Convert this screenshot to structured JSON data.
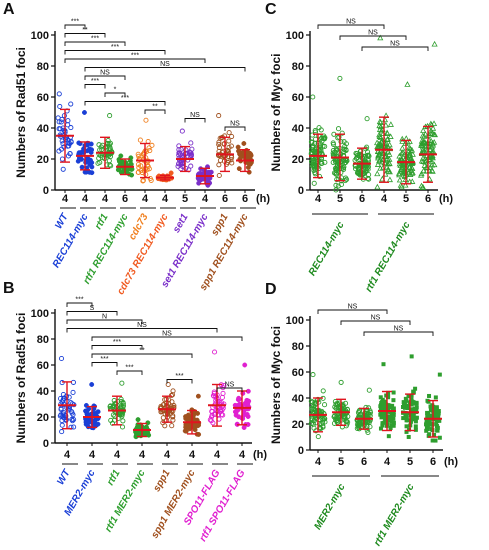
{
  "chart_data": [
    {
      "panel": "A",
      "type": "scatter",
      "ylabel": "Numbers of Rad51 foci",
      "ylim": [
        0,
        100
      ],
      "yticks": [
        0,
        20,
        40,
        60,
        80,
        100
      ],
      "x_unit": "(h)",
      "categories": [
        "4",
        "4",
        "4",
        "6",
        "4",
        "4",
        "5",
        "4",
        "6",
        "6"
      ],
      "group_labels": [
        "WT",
        "REC114-myc",
        "rtf1",
        "rtf1 REC114-myc",
        "cdc73",
        "cdc73 REC114-myc",
        "set1",
        "set1 REC114-myc",
        "spp1",
        "spp1 REC114-myc"
      ],
      "series": [
        {
          "label": "WT",
          "color": "#1a3fd6",
          "marker": "open-circle",
          "mean": 35,
          "sd": 17,
          "max": 62
        },
        {
          "label": "REC114-myc",
          "color": "#1a3fd6",
          "marker": "filled-circle",
          "mean": 22,
          "sd": 9,
          "max": 50
        },
        {
          "label": "rtf1",
          "color": "#2e9e2e",
          "marker": "open-circle",
          "mean": 24,
          "sd": 10,
          "max": 48
        },
        {
          "label": "rtf1 REC114-myc",
          "color": "#2e9e2e",
          "marker": "filled-circle",
          "mean": 15,
          "sd": 5,
          "max": 22
        },
        {
          "label": "cdc73",
          "color": "#f08020",
          "marker": "open-circle",
          "mean": 19,
          "sd": 11,
          "max": 45
        },
        {
          "label": "cdc73 REC114-myc",
          "color": "#f05a20",
          "marker": "filled-circle",
          "mean": 8,
          "sd": 1.5,
          "max": 11
        },
        {
          "label": "set1",
          "color": "#7a2fc9",
          "marker": "open-circle",
          "mean": 20,
          "sd": 8,
          "max": 38
        },
        {
          "label": "set1 REC114-myc",
          "color": "#7a2fc9",
          "marker": "filled-circle",
          "mean": 9,
          "sd": 5,
          "max": 15
        },
        {
          "label": "spp1",
          "color": "#a0501e",
          "marker": "open-circle",
          "mean": 23,
          "sd": 11,
          "max": 48
        },
        {
          "label": "spp1 REC114-myc",
          "color": "#a0501e",
          "marker": "filled-circle",
          "mean": 19,
          "sd": 7,
          "max": 30
        }
      ],
      "comparisons": [
        {
          "from": 1,
          "to": 2,
          "text": "***"
        },
        {
          "from": 1,
          "to": 3,
          "text": "**"
        },
        {
          "from": 1,
          "to": 4,
          "text": "***"
        },
        {
          "from": 1,
          "to": 6,
          "text": "***"
        },
        {
          "from": 1,
          "to": 8,
          "text": "***"
        },
        {
          "from": 2,
          "to": 10,
          "text": "NS"
        },
        {
          "from": 2,
          "to": 4,
          "text": "NS"
        },
        {
          "from": 2,
          "to": 3,
          "text": "***"
        },
        {
          "from": 3,
          "to": 4,
          "text": "*"
        },
        {
          "from": 2,
          "to": 6,
          "text": "***"
        },
        {
          "from": 5,
          "to": 6,
          "text": "**"
        },
        {
          "from": 7,
          "to": 8,
          "text": "NS"
        },
        {
          "from": 9,
          "to": 10,
          "text": "NS"
        }
      ]
    },
    {
      "panel": "B",
      "type": "scatter",
      "ylabel": "Numbers of Rad51 foci",
      "ylim": [
        0,
        100
      ],
      "yticks": [
        0,
        20,
        40,
        60,
        80,
        100
      ],
      "x_unit": "(h)",
      "categories": [
        "4",
        "4",
        "4",
        "4",
        "4",
        "4",
        "4",
        "4"
      ],
      "group_labels": [
        "WT",
        "MER2-myc",
        "rtf1",
        "rtf1 MER2-myc",
        "spp1",
        "spp1 MER2-myc",
        "SPO11-FLAG",
        "rtf1 SPO11-FLAG"
      ],
      "series": [
        {
          "label": "WT",
          "color": "#1a3fd6",
          "marker": "open-circle",
          "mean": 29,
          "sd": 18,
          "max": 65
        },
        {
          "label": "MER2-myc",
          "color": "#1a3fd6",
          "marker": "filled-circle",
          "mean": 20,
          "sd": 8,
          "max": 45
        },
        {
          "label": "rtf1",
          "color": "#2e9e2e",
          "marker": "open-circle",
          "mean": 25,
          "sd": 11,
          "max": 46
        },
        {
          "label": "rtf1 MER2-myc",
          "color": "#2e9e2e",
          "marker": "filled-circle",
          "mean": 10,
          "sd": 5,
          "max": 18
        },
        {
          "label": "spp1",
          "color": "#a0501e",
          "marker": "open-circle",
          "mean": 26,
          "sd": 10,
          "max": 45
        },
        {
          "label": "spp1 MER2-myc",
          "color": "#a0501e",
          "marker": "filled-circle",
          "mean": 16,
          "sd": 9,
          "max": 36
        },
        {
          "label": "SPO11-FLAG",
          "color": "#e020d0",
          "marker": "open-circle",
          "mean": 29,
          "sd": 16,
          "max": 70
        },
        {
          "label": "rtf1 SPO11-FLAG",
          "color": "#e020d0",
          "marker": "filled-circle",
          "mean": 27,
          "sd": 13,
          "max": 60
        }
      ],
      "comparisons": [
        {
          "from": 1,
          "to": 2,
          "text": "***"
        },
        {
          "from": 1,
          "to": 3,
          "text": "S"
        },
        {
          "from": 1,
          "to": 4,
          "text": "N"
        },
        {
          "from": 1,
          "to": 7,
          "text": "NS"
        },
        {
          "from": 2,
          "to": 8,
          "text": "NS"
        },
        {
          "from": 2,
          "to": 4,
          "text": "***"
        },
        {
          "from": 2,
          "to": 6,
          "text": "**"
        },
        {
          "from": 2,
          "to": 3,
          "text": "***"
        },
        {
          "from": 3,
          "to": 4,
          "text": "***"
        },
        {
          "from": 5,
          "to": 6,
          "text": "***"
        },
        {
          "from": 7,
          "to": 8,
          "text": "NS"
        }
      ]
    },
    {
      "panel": "C",
      "type": "scatter",
      "ylabel": "Numbers of Myc foci",
      "ylim": [
        0,
        100
      ],
      "yticks": [
        0,
        20,
        40,
        60,
        80,
        100
      ],
      "x_unit": "(h)",
      "categories": [
        "4",
        "5",
        "6",
        "4",
        "5",
        "6"
      ],
      "group_labels": [
        "REC114-myc",
        "rtf1 REC114-myc"
      ],
      "series": [
        {
          "label": "REC114-myc 4h",
          "color": "#2e9e2e",
          "marker": "open-circle",
          "mean": 22,
          "sd": 14,
          "max": 60
        },
        {
          "label": "REC114-myc 5h",
          "color": "#2e9e2e",
          "marker": "open-circle",
          "mean": 21,
          "sd": 15,
          "max": 72
        },
        {
          "label": "REC114-myc 6h",
          "color": "#2e9e2e",
          "marker": "open-circle",
          "mean": 17,
          "sd": 10,
          "max": 46
        },
        {
          "label": "rtf1 REC114-myc 4h",
          "color": "#2e9e2e",
          "marker": "open-triangle",
          "mean": 26,
          "sd": 21,
          "max": 98
        },
        {
          "label": "rtf1 REC114-myc 5h",
          "color": "#2e9e2e",
          "marker": "open-triangle",
          "mean": 18,
          "sd": 14,
          "max": 68
        },
        {
          "label": "rtf1 REC114-myc 6h",
          "color": "#2e9e2e",
          "marker": "open-triangle",
          "mean": 23,
          "sd": 18,
          "max": 94
        }
      ],
      "comparisons": [
        {
          "from": 1,
          "to": 4,
          "text": "NS"
        },
        {
          "from": 2,
          "to": 5,
          "text": "NS"
        },
        {
          "from": 3,
          "to": 6,
          "text": "NS"
        }
      ]
    },
    {
      "panel": "D",
      "type": "scatter",
      "ylabel": "Numbers of Myc foci",
      "ylim": [
        0,
        100
      ],
      "yticks": [
        0,
        20,
        40,
        60,
        80,
        100
      ],
      "x_unit": "(h)",
      "categories": [
        "4",
        "5",
        "6",
        "4",
        "5",
        "6"
      ],
      "group_labels": [
        "MER2-myc",
        "rtf1 MER2-myc"
      ],
      "series": [
        {
          "label": "MER2-myc 4h",
          "color": "#2e9e2e",
          "marker": "open-circle",
          "mean": 27,
          "sd": 13,
          "max": 58
        },
        {
          "label": "MER2-myc 5h",
          "color": "#2e9e2e",
          "marker": "open-circle",
          "mean": 29,
          "sd": 10,
          "max": 52
        },
        {
          "label": "MER2-myc 6h",
          "color": "#2e9e2e",
          "marker": "open-circle",
          "mean": 24,
          "sd": 8,
          "max": 46
        },
        {
          "label": "rtf1 MER2-myc 4h",
          "color": "#2e9e2e",
          "marker": "filled-square",
          "mean": 30,
          "sd": 15,
          "max": 66
        },
        {
          "label": "rtf1 MER2-myc 5h",
          "color": "#2e9e2e",
          "marker": "filled-square",
          "mean": 29,
          "sd": 14,
          "max": 72
        },
        {
          "label": "rtf1 MER2-myc 6h",
          "color": "#2e9e2e",
          "marker": "filled-square",
          "mean": 24,
          "sd": 14,
          "max": 58
        }
      ],
      "comparisons": [
        {
          "from": 1,
          "to": 4,
          "text": "NS"
        },
        {
          "from": 2,
          "to": 5,
          "text": "NS"
        },
        {
          "from": 3,
          "to": 6,
          "text": "NS"
        }
      ]
    }
  ]
}
